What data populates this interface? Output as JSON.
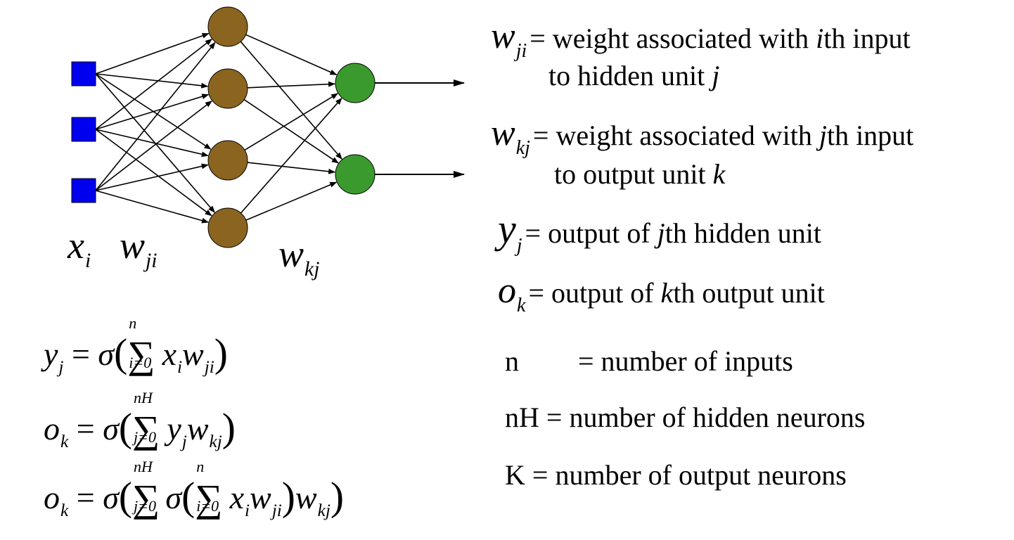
{
  "network": {
    "input_color": "#0000ee",
    "hidden_color": "#8b6420",
    "output_color": "#3a9a2e",
    "label_x": "x",
    "label_x_sub": "i",
    "label_wji": "w",
    "label_wji_sub": "ji",
    "label_wkj": "w",
    "label_wkj_sub": "kj"
  },
  "definitions": [
    {
      "sym": "w",
      "sub": "ji",
      "line1a": "= weight associated with ",
      "var1": "i",
      "line1b": "th input",
      "line2a": "to hidden unit ",
      "var2": "j"
    },
    {
      "sym": "w",
      "sub": "kj",
      "line1a": "= weight associated with ",
      "var1": "j",
      "line1b": "th input",
      "line2a": "to output unit ",
      "var2": "k"
    },
    {
      "sym": "y",
      "sub": "j",
      "line1a": "= output of ",
      "var1": "j",
      "line1b": "th hidden unit"
    },
    {
      "sym": "o",
      "sub": "k",
      "line1a": "= output of ",
      "var1": "k",
      "line1b": "th output unit"
    },
    {
      "sym": "n",
      "line1a": "= number of inputs"
    },
    {
      "sym": "nH",
      "line1a": "= number of hidden neurons"
    },
    {
      "sym": "K",
      "line1a": "= number of output neurons"
    }
  ],
  "equations": {
    "eq1": {
      "lhs": "y",
      "lhs_sub": "j",
      "eq": "=",
      "sigma": "σ",
      "upper": "n",
      "lower": "i=0",
      "t1": "x",
      "t1_sub": "i",
      "t2": "w",
      "t2_sub": "ji"
    },
    "eq2": {
      "lhs": "o",
      "lhs_sub": "k",
      "eq": "=",
      "sigma": "σ",
      "upper": "nH",
      "lower": "j=0",
      "t1": "y",
      "t1_sub": "j",
      "t2": "w",
      "t2_sub": "kj"
    },
    "eq3": {
      "lhs": "o",
      "lhs_sub": "k",
      "eq": "=",
      "sigma": "σ",
      "upper": "nH",
      "lower": "j=0",
      "sigma2": "σ",
      "upper2": "n",
      "lower2": "i=0",
      "t1": "x",
      "t1_sub": "i",
      "t2": "w",
      "t2_sub": "ji",
      "t3": "w",
      "t3_sub": "kj"
    }
  }
}
